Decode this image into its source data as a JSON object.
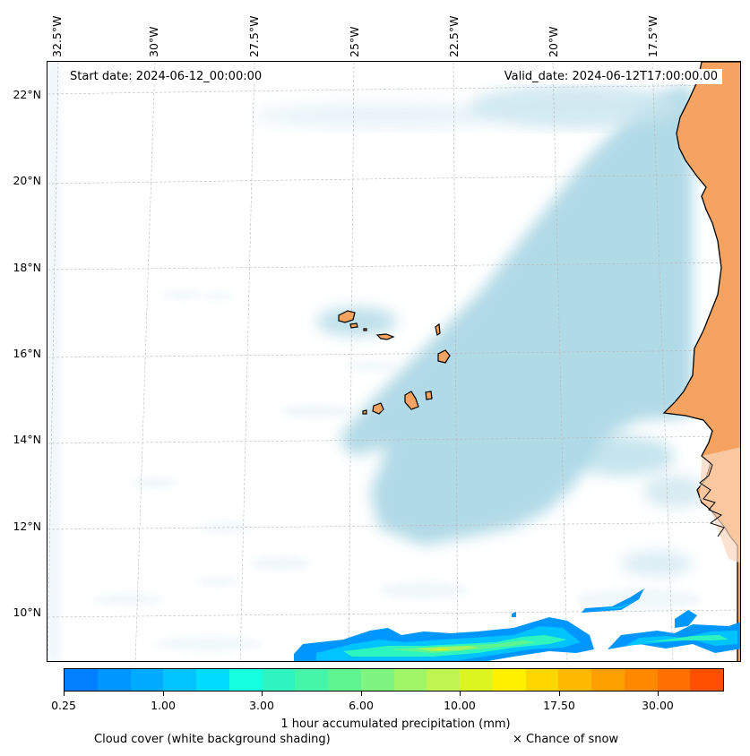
{
  "map": {
    "start_label": "Start date: 2024-06-12_00:00:00",
    "valid_label": "Valid_date: 2024-06-12T17:00:00.00",
    "longitude_labels": [
      "32.5°W",
      "30°W",
      "27.5°W",
      "25°W",
      "22.5°W",
      "20°W",
      "17.5°W"
    ],
    "latitude_labels": [
      "22°N",
      "20°N",
      "18°N",
      "16°N",
      "14°N",
      "12°N",
      "10°N"
    ],
    "land_color": "#f4a460",
    "cloud_color": "#add8e6"
  },
  "colorbar": {
    "title": "1 hour accumulated precipitation (mm)",
    "tick_labels": [
      "0.25",
      "1.00",
      "3.00",
      "6.00",
      "10.00",
      "17.50",
      "30.00"
    ],
    "colors": [
      "#0080ff",
      "#0096ff",
      "#00aaff",
      "#00c3ff",
      "#00dcff",
      "#15ffe0",
      "#2ef5c0",
      "#45f5a8",
      "#5ef590",
      "#7df580",
      "#9ef565",
      "#bef550",
      "#dcf520",
      "#fff000",
      "#ffd700",
      "#ffba00",
      "#ffa000",
      "#ff8800",
      "#ff7000",
      "#ff5000"
    ]
  },
  "legend": {
    "cloud": "Cloud cover (white background shading)",
    "snow": "× Chance of snow"
  }
}
